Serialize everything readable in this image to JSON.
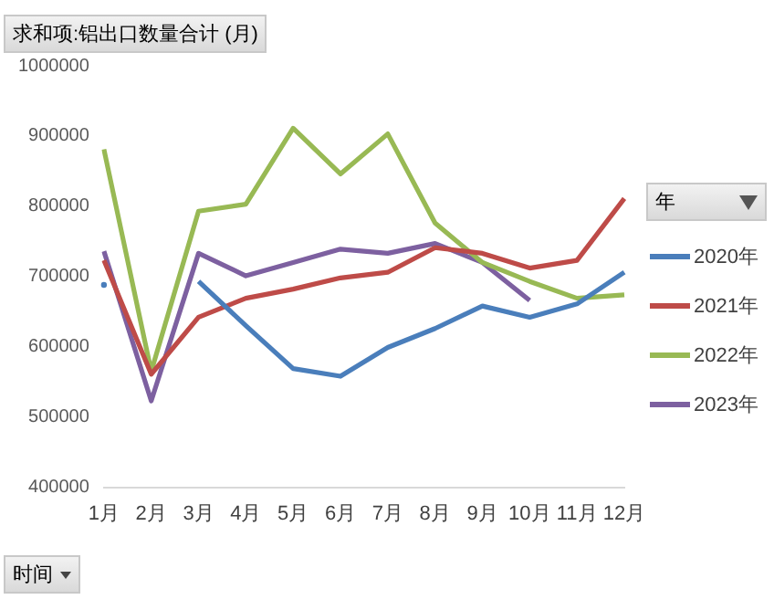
{
  "chart_data": {
    "type": "line",
    "title": "求和项:铝出口数量合计 (月)",
    "xlabel": "时间",
    "legend_title": "年",
    "legend": "right",
    "grid": false,
    "marker": "none",
    "line_style": "solid",
    "categories": [
      "1月",
      "2月",
      "3月",
      "4月",
      "5月",
      "6月",
      "7月",
      "8月",
      "9月",
      "10月",
      "11月",
      "12月"
    ],
    "ylim": [
      400000,
      1000000
    ],
    "yticks": [
      400000,
      500000,
      600000,
      700000,
      800000,
      900000,
      1000000
    ],
    "series": [
      {
        "name": "2020年",
        "color": "#4a7ebb",
        "values": [
          688000,
          null,
          693000,
          630000,
          569000,
          558000,
          599000,
          626000,
          658000,
          642000,
          661000,
          706000
        ]
      },
      {
        "name": "2021年",
        "color": "#be4b48",
        "values": [
          723000,
          561000,
          642000,
          669000,
          682000,
          698000,
          706000,
          741000,
          733000,
          712000,
          723000,
          811000
        ]
      },
      {
        "name": "2022年",
        "color": "#98b954",
        "values": [
          881000,
          565000,
          793000,
          803000,
          911000,
          846000,
          903000,
          776000,
          720000,
          693000,
          669000,
          674000
        ]
      },
      {
        "name": "2023年",
        "color": "#7d60a0",
        "values": [
          736000,
          523000,
          733000,
          701000,
          720000,
          739000,
          733000,
          747000,
          720000,
          666000,
          null,
          null
        ]
      }
    ]
  }
}
